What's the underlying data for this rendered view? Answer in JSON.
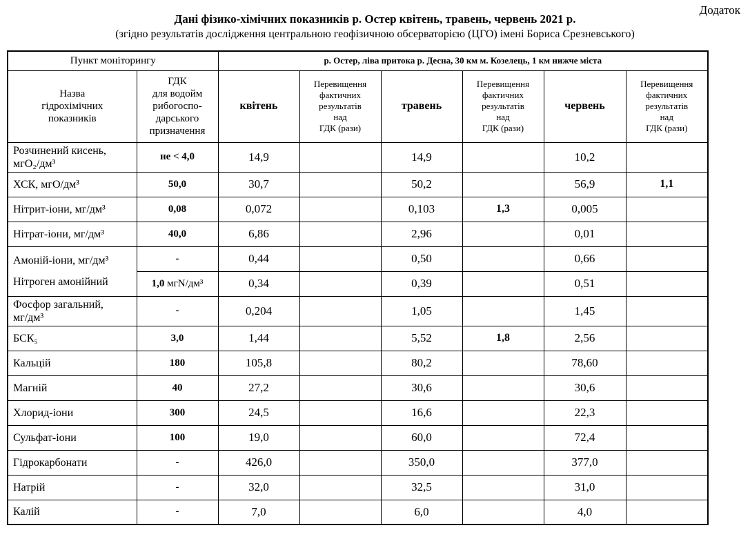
{
  "page": {
    "annex_label": "Додаток",
    "title": "Дані фізико-хімічних показників р. Остер квітень, травень, червень 2021 р.",
    "subtitle": "(згідно результатів дослідження центральною геофізичною обсерваторією (ЦГО) імені Бориса Срезневського)"
  },
  "table": {
    "header_row1": {
      "monitoring_point": "Пункт моніторингу",
      "station": "р. Остер, ліва притока р. Десна, 30 км м. Козелець, 1 км нижче міста"
    },
    "header_row2": {
      "indicator": "Назва\nгідрохімічних\nпоказників",
      "gdk": "ГДК\nдля водойм\nрибогоспо-\nдарського\nпризначення",
      "april": "квітень",
      "may": "травень",
      "june": "червень",
      "exceed": "Перевищення\nфактичних\nрезультатів\nнад\nГДК (рази)"
    },
    "rows": [
      {
        "name": "Розчинений кисень,\nмгО₂/дм³",
        "gdk_bold": "не < 4,0",
        "gdk_normal": "",
        "april": "14,9",
        "april_exceed": "",
        "may": "14,9",
        "may_exceed": "",
        "june": "10,2",
        "june_exceed": ""
      },
      {
        "name": "ХСК, мгО/дм³",
        "gdk_bold": "50,0",
        "gdk_normal": "",
        "april": "30,7",
        "april_exceed": "",
        "may": "50,2",
        "may_exceed": "",
        "june": "56,9",
        "june_exceed": "1,1"
      },
      {
        "name": "Нітрит-іони, мг/дм³",
        "gdk_bold": "0,08",
        "gdk_normal": "",
        "april": "0,072",
        "april_exceed": "",
        "may": "0,103",
        "may_exceed": "1,3",
        "june": "0,005",
        "june_exceed": ""
      },
      {
        "name": "Нітрат-іони, мг/дм³",
        "gdk_bold": "40,0",
        "gdk_normal": "",
        "april": "6,86",
        "april_exceed": "",
        "may": "2,96",
        "may_exceed": "",
        "june": "0,01",
        "june_exceed": ""
      },
      {
        "name": "Амоній-іони, мг/дм³",
        "merge_next": true,
        "gdk_bold": "-",
        "gdk_normal": "",
        "april": "0,44",
        "april_exceed": "",
        "may": "0,50",
        "may_exceed": "",
        "june": "0,66",
        "june_exceed": ""
      },
      {
        "name": "Нітроген амонійний",
        "merged_into_prev": true,
        "gdk_bold": "1,0",
        "gdk_normal": " мгN/дм³",
        "april": "0,34",
        "april_exceed": "",
        "may": "0,39",
        "may_exceed": "",
        "june": "0,51",
        "june_exceed": ""
      },
      {
        "name": "Фосфор загальний,\nмг/дм³",
        "gdk_bold": "-",
        "gdk_normal": "",
        "april": "0,204",
        "april_exceed": "",
        "may": "1,05",
        "may_exceed": "",
        "june": "1,45",
        "june_exceed": ""
      },
      {
        "name": "БСК₅",
        "gdk_bold": "3,0",
        "gdk_normal": "",
        "april": "1,44",
        "april_exceed": "",
        "may": "5,52",
        "may_exceed": "1,8",
        "june": "2,56",
        "june_exceed": ""
      },
      {
        "name": "Кальцій",
        "gdk_bold": "180",
        "gdk_normal": "",
        "april": "105,8",
        "april_exceed": "",
        "may": "80,2",
        "may_exceed": "",
        "june": "78,60",
        "june_exceed": ""
      },
      {
        "name": "Магній",
        "gdk_bold": "40",
        "gdk_normal": "",
        "april": "27,2",
        "april_exceed": "",
        "may": "30,6",
        "may_exceed": "",
        "june": "30,6",
        "june_exceed": ""
      },
      {
        "name": "Хлорид-іони",
        "gdk_bold": "300",
        "gdk_normal": "",
        "april": "24,5",
        "april_exceed": "",
        "may": "16,6",
        "may_exceed": "",
        "june": "22,3",
        "june_exceed": ""
      },
      {
        "name": "Сульфат-іони",
        "gdk_bold": "100",
        "gdk_normal": "",
        "april": "19,0",
        "april_exceed": "",
        "may": "60,0",
        "may_exceed": "",
        "june": "72,4",
        "june_exceed": ""
      },
      {
        "name": "Гідрокарбонати",
        "gdk_bold": "-",
        "gdk_normal": "",
        "april": "426,0",
        "april_exceed": "",
        "may": "350,0",
        "may_exceed": "",
        "june": "377,0",
        "june_exceed": ""
      },
      {
        "name": "Натрій",
        "gdk_bold": "-",
        "gdk_normal": "",
        "april": "32,0",
        "april_exceed": "",
        "may": "32,5",
        "may_exceed": "",
        "june": "31,0",
        "june_exceed": ""
      },
      {
        "name": "Калій",
        "gdk_bold": "-",
        "gdk_normal": "",
        "april": "7,0",
        "april_exceed": "",
        "may": "6,0",
        "may_exceed": "",
        "june": "4,0",
        "june_exceed": ""
      }
    ]
  }
}
